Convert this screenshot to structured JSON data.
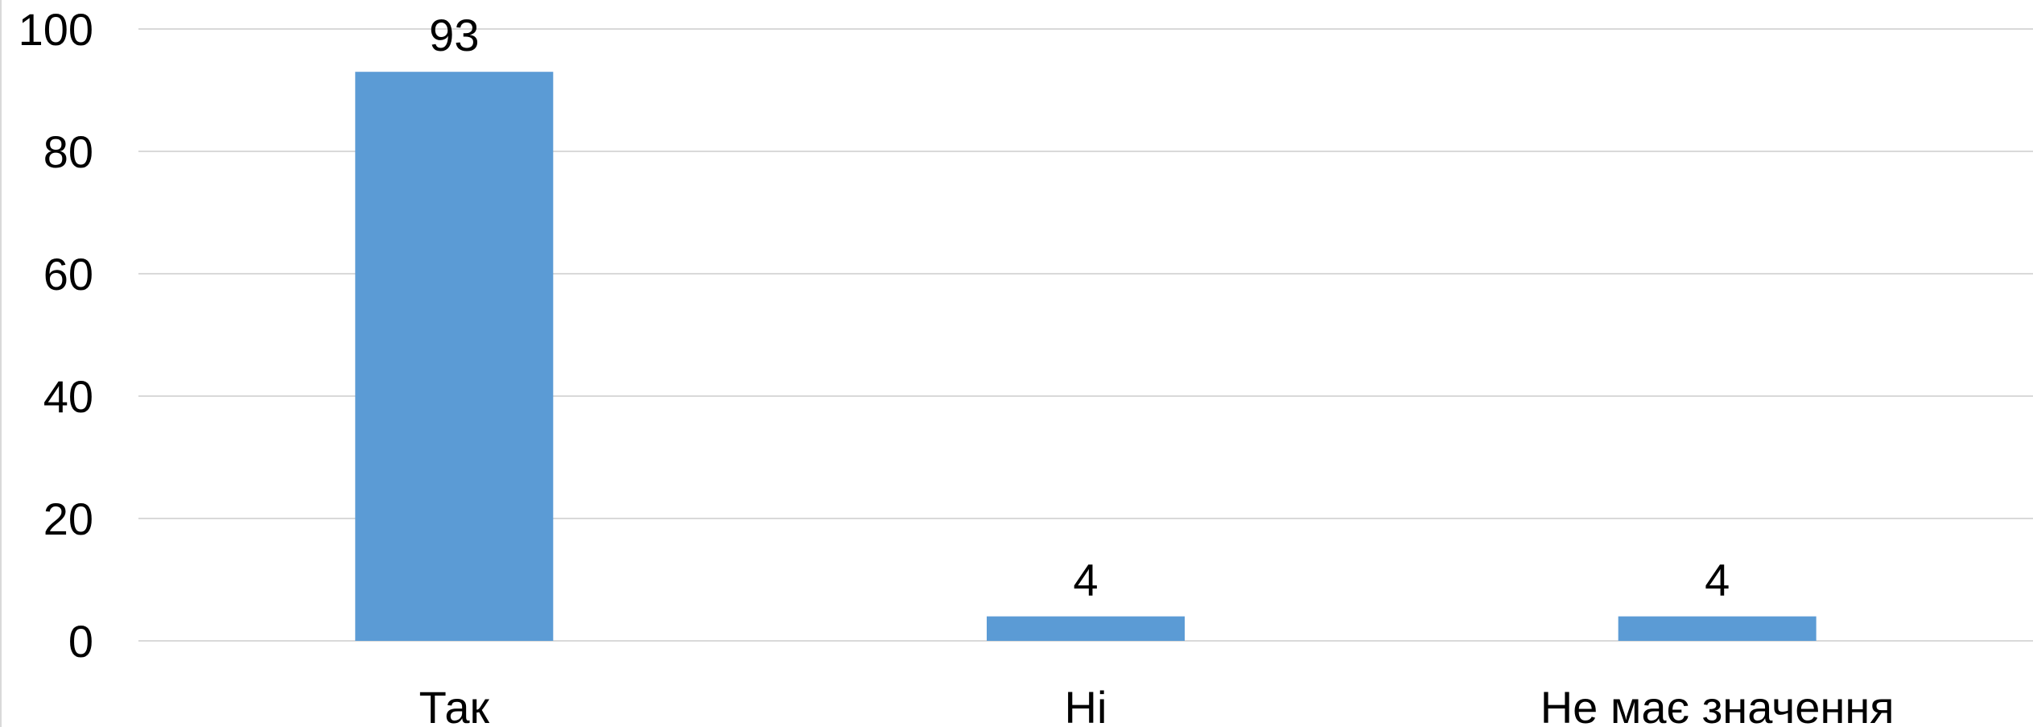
{
  "chart_data": {
    "type": "bar",
    "categories": [
      "Так",
      "Ні",
      "Не має значення"
    ],
    "values": [
      93,
      4,
      4
    ],
    "data_labels": [
      "93",
      "4",
      "4"
    ],
    "ylim": [
      0,
      100
    ],
    "yticks": [
      0,
      20,
      40,
      60,
      80,
      100
    ],
    "ytick_labels": [
      "0",
      "20",
      "40",
      "60",
      "80",
      "100"
    ],
    "grid": true,
    "bar_color": "#5B9BD5",
    "grid_color": "#D9D9D9",
    "title": "",
    "xlabel": "",
    "ylabel": ""
  }
}
